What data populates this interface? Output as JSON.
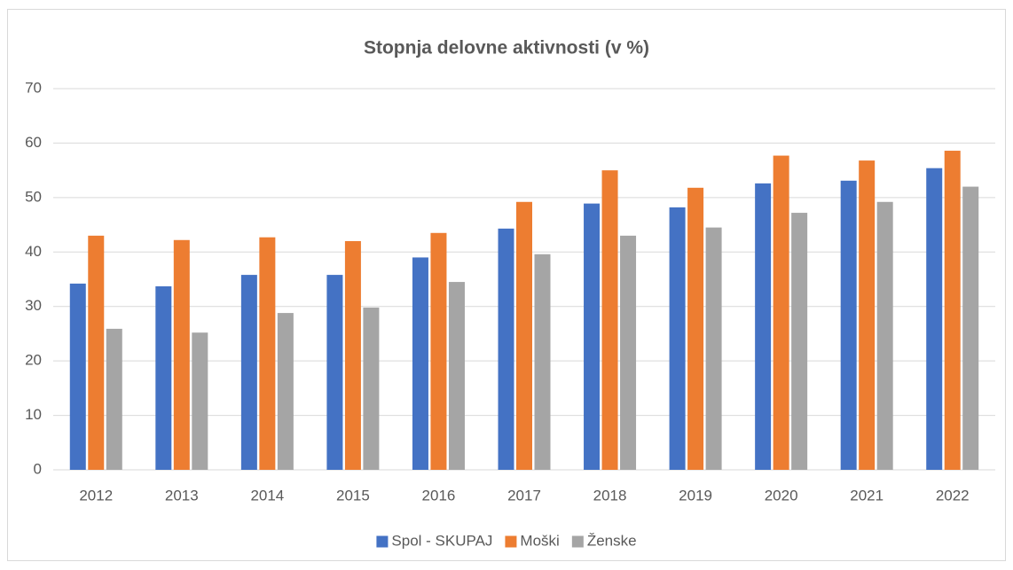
{
  "chart_data": {
    "type": "bar",
    "title": "Stopnja delovne aktivnosti (v %)",
    "categories": [
      "2012",
      "2013",
      "2014",
      "2015",
      "2016",
      "2017",
      "2018",
      "2019",
      "2020",
      "2021",
      "2022"
    ],
    "series": [
      {
        "name": "Spol - SKUPAJ",
        "color": "#4472c4",
        "values": [
          34.2,
          33.7,
          35.8,
          35.8,
          39.0,
          44.3,
          48.9,
          48.2,
          52.6,
          53.1,
          55.4
        ]
      },
      {
        "name": "Moški",
        "color": "#ed7d31",
        "values": [
          43.0,
          42.2,
          42.7,
          42.0,
          43.5,
          49.2,
          55.0,
          51.8,
          57.7,
          56.8,
          58.6
        ]
      },
      {
        "name": "Ženske",
        "color": "#a5a5a5",
        "values": [
          25.9,
          25.2,
          28.8,
          29.8,
          34.5,
          39.6,
          43.0,
          44.5,
          47.2,
          49.2,
          52.0
        ]
      }
    ],
    "ylim": [
      0,
      70
    ],
    "yticks": [
      0,
      10,
      20,
      30,
      40,
      50,
      60,
      70
    ],
    "grid": true,
    "legend": "bottom"
  }
}
